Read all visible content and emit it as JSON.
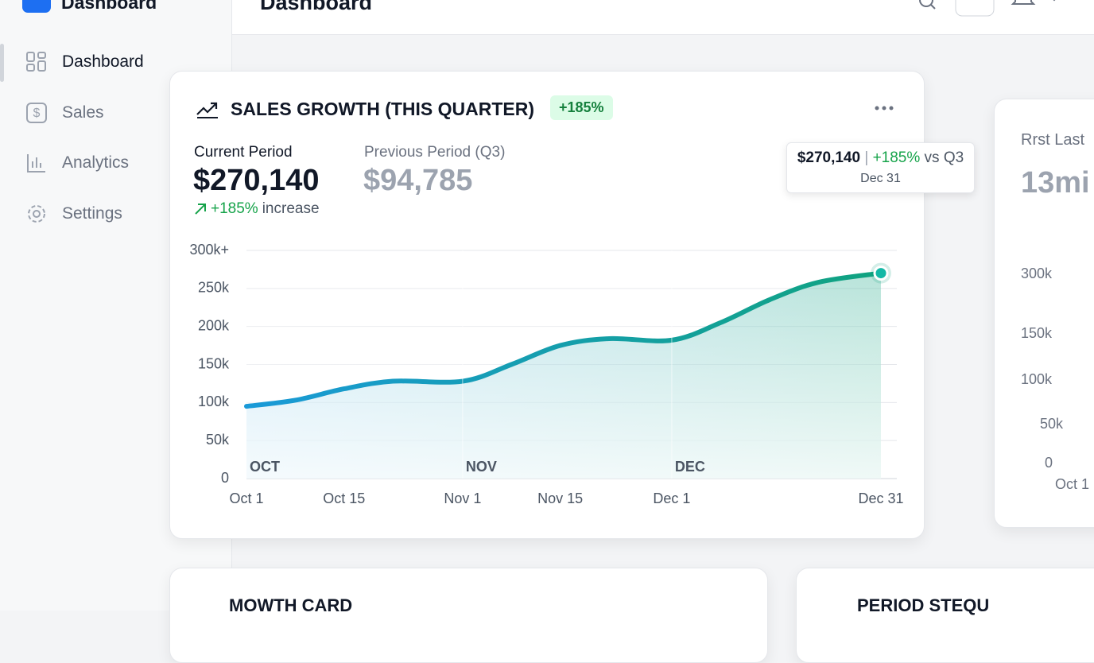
{
  "sidebar": {
    "brand": "Dashboard",
    "nav": [
      "Dashboard",
      "Sales",
      "Analytics",
      "Settings"
    ]
  },
  "header": {
    "title": "Dashboard"
  },
  "sales_card": {
    "title": "SALES GROWTH (THIS QUARTER)",
    "badge": "+185%",
    "current_label": "Current Period",
    "current_value": "$270,140",
    "change": "+185%",
    "change_text": "increase",
    "previous_label": "Previous Period (Q3)",
    "previous_value": "$94,785",
    "tooltip": {
      "value": "$270,140",
      "change": "+185%",
      "compare": "vs Q3",
      "date": "Dec 31"
    }
  },
  "chart_data": {
    "type": "line",
    "x": [
      "Oct 1",
      "Oct 8",
      "Oct 15",
      "Oct 22",
      "Nov 1",
      "Nov 8",
      "Nov 15",
      "Nov 22",
      "Dec 1",
      "Dec 8",
      "Dec 15",
      "Dec 22",
      "Dec 31"
    ],
    "values": [
      95000,
      103000,
      118000,
      128000,
      128000,
      150000,
      175000,
      184000,
      182000,
      205000,
      235000,
      258000,
      270140
    ],
    "colors": [
      "#1a9ad8",
      "#10a37f"
    ],
    "xlim": [
      "Oct 1",
      "Dec 31"
    ],
    "xticks": [
      "Oct 1",
      "Oct 15",
      "Nov 1",
      "Nov 15",
      "Dec 1",
      "Dec 31"
    ],
    "month_labels": [
      "OCT",
      "NOV",
      "DEC"
    ],
    "ylim": [
      0,
      300000
    ],
    "yticks": [
      0,
      {
        "value": 50000,
        "label": "50k"
      },
      {
        "value": 100000,
        "label": "100k"
      },
      {
        "value": 150000,
        "label": "150k"
      },
      {
        "value": 200000,
        "label": "200k"
      },
      {
        "value": 250000,
        "label": "250k"
      },
      {
        "value": 300000,
        "label": "300k+"
      }
    ],
    "grid": true
  },
  "side_card": {
    "title": "Rrst Last",
    "value": "13mi",
    "axis_labels": [
      "300k",
      "150k",
      "100k",
      "50k",
      "0",
      "Oct 1"
    ]
  },
  "bottom_cards": [
    "MOWTH CARD",
    "PERIOD STEQU"
  ]
}
